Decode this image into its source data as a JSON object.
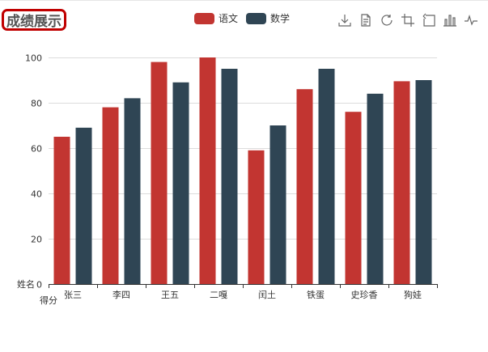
{
  "title": "成绩展示",
  "legend": [
    {
      "name": "语文",
      "color": "#c23531"
    },
    {
      "name": "数学",
      "color": "#2f4554"
    }
  ],
  "toolbox": [
    {
      "name": "download-icon"
    },
    {
      "name": "data-view-icon"
    },
    {
      "name": "restore-icon"
    },
    {
      "name": "zoom-icon"
    },
    {
      "name": "zoom-reset-icon"
    },
    {
      "name": "bar-chart-icon"
    },
    {
      "name": "line-chart-icon"
    }
  ],
  "chart_data": {
    "type": "bar",
    "title": "成绩展示",
    "categories": [
      "张三",
      "李四",
      "王五",
      "二嘎",
      "闰土",
      "铁蛋",
      "史珍香",
      "狗娃"
    ],
    "series": [
      {
        "name": "语文",
        "color": "#c23531",
        "values": [
          65,
          78,
          98,
          100,
          59,
          86,
          76,
          89.5
        ]
      },
      {
        "name": "数学",
        "color": "#2f4554",
        "values": [
          69,
          82,
          89,
          95,
          70,
          95,
          84,
          90
        ]
      }
    ],
    "xlabel": "得分",
    "ylabel": "姓名",
    "ylim": [
      0,
      100
    ],
    "yticks": [
      0,
      20,
      40,
      60,
      80,
      100
    ],
    "grid": true,
    "legend_position": "top-center"
  }
}
